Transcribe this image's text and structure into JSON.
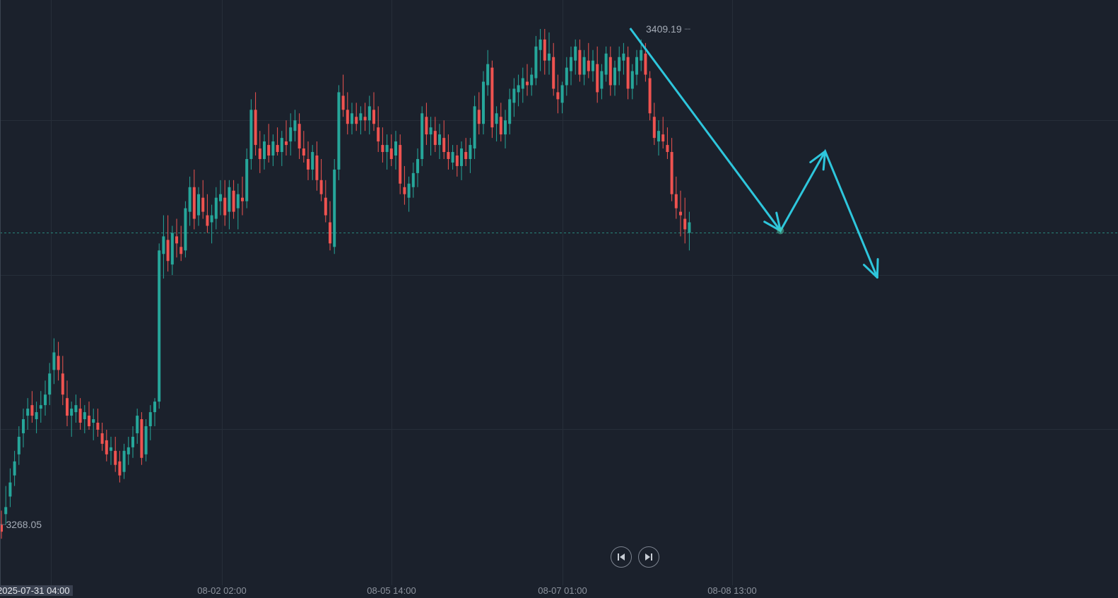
{
  "chart_data": {
    "type": "candlestick",
    "y_range": [
      3268.05,
      3409.19
    ],
    "price_labels": {
      "high": "3409.19",
      "low": "3268.05"
    },
    "x_ticks": [
      "2025-07-31 04:00",
      "08-02 02:00",
      "08-05 14:00",
      "08-07 01:00",
      "08-08 13:00"
    ],
    "colors": {
      "up": "#26a69a",
      "down": "#ef5350",
      "drawing": "#2ec6dc",
      "grid": "#262e39",
      "background": "#1b212c"
    },
    "candles": [
      [
        3268,
        3272,
        3264,
        3266
      ],
      [
        3271,
        3279,
        3268,
        3273
      ],
      [
        3276,
        3284,
        3273,
        3280
      ],
      [
        3282,
        3289,
        3279,
        3286
      ],
      [
        3288,
        3296,
        3285,
        3293
      ],
      [
        3294,
        3301,
        3290,
        3298
      ],
      [
        3299,
        3304,
        3295,
        3301
      ],
      [
        3302,
        3306,
        3297,
        3299
      ],
      [
        3298,
        3303,
        3294,
        3300
      ],
      [
        3301,
        3306,
        3297,
        3302
      ],
      [
        3302,
        3309,
        3299,
        3305
      ],
      [
        3305,
        3314,
        3302,
        3311
      ],
      [
        3312,
        3321,
        3308,
        3317
      ],
      [
        3316,
        3320,
        3309,
        3312
      ],
      [
        3311,
        3316,
        3302,
        3305
      ],
      [
        3304,
        3309,
        3296,
        3299
      ],
      [
        3299,
        3303,
        3293,
        3301
      ],
      [
        3300,
        3305,
        3297,
        3302
      ],
      [
        3301,
        3304,
        3295,
        3297
      ],
      [
        3298,
        3302,
        3294,
        3300
      ],
      [
        3299,
        3303,
        3295,
        3296
      ],
      [
        3297,
        3301,
        3292,
        3298
      ],
      [
        3297,
        3301,
        3293,
        3295
      ],
      [
        3294,
        3297,
        3289,
        3291
      ],
      [
        3292,
        3295,
        3286,
        3288
      ],
      [
        3289,
        3293,
        3285,
        3290
      ],
      [
        3289,
        3293,
        3283,
        3285
      ],
      [
        3286,
        3289,
        3280,
        3282
      ],
      [
        3283,
        3291,
        3281,
        3289
      ],
      [
        3288,
        3293,
        3285,
        3290
      ],
      [
        3290,
        3296,
        3287,
        3293
      ],
      [
        3294,
        3301,
        3291,
        3299
      ],
      [
        3298,
        3300,
        3285,
        3287
      ],
      [
        3288,
        3298,
        3286,
        3296
      ],
      [
        3296,
        3302,
        3292,
        3300
      ],
      [
        3300,
        3304,
        3296,
        3303
      ],
      [
        3303,
        3348,
        3301,
        3346
      ],
      [
        3345,
        3356,
        3338,
        3350
      ],
      [
        3349,
        3356,
        3340,
        3343
      ],
      [
        3342,
        3353,
        3339,
        3351
      ],
      [
        3350,
        3355,
        3344,
        3348
      ],
      [
        3347,
        3353,
        3343,
        3345
      ],
      [
        3346,
        3360,
        3344,
        3358
      ],
      [
        3357,
        3367,
        3353,
        3364
      ],
      [
        3364,
        3369,
        3352,
        3355
      ],
      [
        3356,
        3364,
        3353,
        3362
      ],
      [
        3361,
        3366,
        3355,
        3357
      ],
      [
        3356,
        3362,
        3351,
        3353
      ],
      [
        3354,
        3359,
        3348,
        3356
      ],
      [
        3355,
        3364,
        3352,
        3361
      ],
      [
        3360,
        3366,
        3356,
        3362
      ],
      [
        3361,
        3366,
        3353,
        3356
      ],
      [
        3357,
        3366,
        3352,
        3364
      ],
      [
        3363,
        3366,
        3355,
        3357
      ],
      [
        3358,
        3365,
        3352,
        3362
      ],
      [
        3361,
        3367,
        3356,
        3360
      ],
      [
        3360,
        3375,
        3358,
        3372
      ],
      [
        3372,
        3389,
        3369,
        3386
      ],
      [
        3386,
        3391,
        3373,
        3376
      ],
      [
        3375,
        3380,
        3368,
        3372
      ],
      [
        3372,
        3379,
        3369,
        3377
      ],
      [
        3376,
        3382,
        3371,
        3373
      ],
      [
        3373,
        3379,
        3370,
        3377
      ],
      [
        3376,
        3381,
        3373,
        3374
      ],
      [
        3374,
        3380,
        3370,
        3378
      ],
      [
        3377,
        3383,
        3373,
        3376
      ],
      [
        3377,
        3385,
        3373,
        3381
      ],
      [
        3380,
        3386,
        3377,
        3383
      ],
      [
        3382,
        3385,
        3372,
        3375
      ],
      [
        3375,
        3380,
        3371,
        3373
      ],
      [
        3372,
        3377,
        3366,
        3369
      ],
      [
        3369,
        3376,
        3366,
        3374
      ],
      [
        3373,
        3377,
        3363,
        3366
      ],
      [
        3366,
        3372,
        3360,
        3362
      ],
      [
        3361,
        3366,
        3354,
        3356
      ],
      [
        3354,
        3360,
        3346,
        3348
      ],
      [
        3347,
        3372,
        3345,
        3369
      ],
      [
        3369,
        3393,
        3366,
        3391
      ],
      [
        3390,
        3396,
        3384,
        3386
      ],
      [
        3386,
        3391,
        3379,
        3382
      ],
      [
        3382,
        3388,
        3379,
        3385
      ],
      [
        3384,
        3388,
        3380,
        3382
      ],
      [
        3383,
        3387,
        3379,
        3385
      ],
      [
        3384,
        3388,
        3380,
        3383
      ],
      [
        3383,
        3390,
        3379,
        3387
      ],
      [
        3386,
        3391,
        3380,
        3382
      ],
      [
        3381,
        3387,
        3374,
        3377
      ],
      [
        3376,
        3381,
        3371,
        3374
      ],
      [
        3374,
        3379,
        3369,
        3376
      ],
      [
        3375,
        3379,
        3370,
        3372
      ],
      [
        3373,
        3380,
        3369,
        3377
      ],
      [
        3376,
        3379,
        3362,
        3365
      ],
      [
        3364,
        3370,
        3359,
        3362
      ],
      [
        3361,
        3367,
        3357,
        3365
      ],
      [
        3364,
        3371,
        3361,
        3368
      ],
      [
        3368,
        3375,
        3364,
        3372
      ],
      [
        3372,
        3387,
        3370,
        3385
      ],
      [
        3384,
        3388,
        3376,
        3379
      ],
      [
        3379,
        3384,
        3373,
        3381
      ],
      [
        3380,
        3384,
        3374,
        3376
      ],
      [
        3376,
        3382,
        3372,
        3379
      ],
      [
        3378,
        3383,
        3372,
        3374
      ],
      [
        3374,
        3379,
        3369,
        3372
      ],
      [
        3371,
        3376,
        3369,
        3374
      ],
      [
        3373,
        3376,
        3367,
        3370
      ],
      [
        3370,
        3377,
        3366,
        3375
      ],
      [
        3374,
        3378,
        3370,
        3372
      ],
      [
        3372,
        3378,
        3368,
        3376
      ],
      [
        3375,
        3390,
        3372,
        3387
      ],
      [
        3386,
        3391,
        3379,
        3382
      ],
      [
        3382,
        3397,
        3379,
        3394
      ],
      [
        3393,
        3403,
        3390,
        3399
      ],
      [
        3398,
        3400,
        3378,
        3381
      ],
      [
        3382,
        3387,
        3377,
        3385
      ],
      [
        3384,
        3388,
        3377,
        3379
      ],
      [
        3379,
        3386,
        3375,
        3383
      ],
      [
        3382,
        3392,
        3379,
        3389
      ],
      [
        3388,
        3395,
        3384,
        3392
      ],
      [
        3391,
        3396,
        3387,
        3393
      ],
      [
        3392,
        3398,
        3388,
        3395
      ],
      [
        3394,
        3399,
        3390,
        3393
      ],
      [
        3393,
        3398,
        3390,
        3396
      ],
      [
        3395,
        3407,
        3393,
        3404
      ],
      [
        3403,
        3409,
        3397,
        3406
      ],
      [
        3406,
        3409,
        3396,
        3400
      ],
      [
        3400,
        3408,
        3396,
        3402
      ],
      [
        3401,
        3405,
        3390,
        3392
      ],
      [
        3391,
        3396,
        3385,
        3389
      ],
      [
        3388,
        3394,
        3385,
        3393
      ],
      [
        3393,
        3401,
        3390,
        3398
      ],
      [
        3397,
        3404,
        3393,
        3401
      ],
      [
        3400,
        3406,
        3396,
        3404
      ],
      [
        3403,
        3406,
        3394,
        3396
      ],
      [
        3396,
        3403,
        3393,
        3401
      ],
      [
        3400,
        3405,
        3395,
        3397
      ],
      [
        3397,
        3403,
        3394,
        3400
      ],
      [
        3399,
        3404,
        3388,
        3391
      ],
      [
        3392,
        3399,
        3389,
        3397
      ],
      [
        3396,
        3404,
        3394,
        3402
      ],
      [
        3401,
        3404,
        3390,
        3393
      ],
      [
        3393,
        3400,
        3390,
        3398
      ],
      [
        3397,
        3404,
        3393,
        3401
      ],
      [
        3400,
        3405,
        3396,
        3402
      ],
      [
        3401,
        3404,
        3389,
        3392
      ],
      [
        3392,
        3399,
        3389,
        3397
      ],
      [
        3396,
        3403,
        3393,
        3401
      ],
      [
        3400,
        3406,
        3397,
        3403
      ],
      [
        3402,
        3405,
        3394,
        3396
      ],
      [
        3395,
        3397,
        3383,
        3385
      ],
      [
        3384,
        3388,
        3376,
        3378
      ],
      [
        3377,
        3383,
        3373,
        3380
      ],
      [
        3379,
        3384,
        3375,
        3377
      ],
      [
        3376,
        3381,
        3372,
        3374
      ],
      [
        3374,
        3378,
        3360,
        3362
      ],
      [
        3362,
        3367,
        3355,
        3358
      ],
      [
        3357,
        3363,
        3350,
        3356
      ],
      [
        3355,
        3361,
        3348,
        3352
      ],
      [
        3351,
        3357,
        3346,
        3354
      ]
    ],
    "drawing": {
      "points": [
        {
          "i": 143.5,
          "p": 3409.19
        },
        {
          "i": 177.8,
          "p": 3351.6
        },
        {
          "i": 188.0,
          "p": 3374.2
        },
        {
          "i": 199.9,
          "p": 3338.3
        }
      ]
    }
  }
}
